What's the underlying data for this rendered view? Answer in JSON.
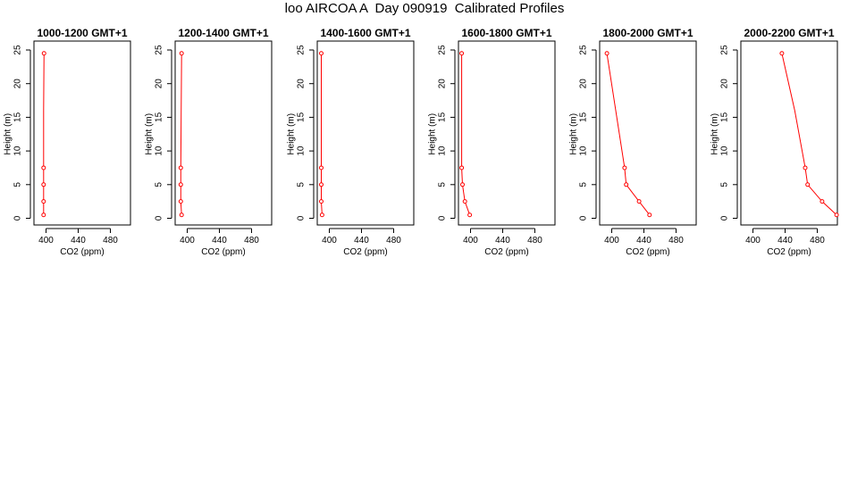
{
  "title": "loo AIRCOA A  Day 090919  Calibrated Profiles",
  "colors": {
    "series": "#ff0000",
    "axis": "#000000"
  },
  "chart_data": [
    {
      "type": "line",
      "title": "1000-1200 GMT+1",
      "xlabel": "CO2 (ppm)",
      "ylabel": "Height (m)",
      "xlim": [
        385,
        505
      ],
      "ylim": [
        0,
        25
      ],
      "xticks": [
        400,
        440,
        480
      ],
      "yticks": [
        0,
        5,
        10,
        15,
        20,
        25
      ],
      "series": [
        {
          "x": [
            397,
            397,
            397,
            397,
            397,
            397.5
          ],
          "y": [
            0.5,
            2.5,
            5,
            7.5,
            16,
            24.5
          ]
        }
      ]
    },
    {
      "type": "line",
      "title": "1200-1400 GMT+1",
      "xlabel": "CO2 (ppm)",
      "ylabel": "Height (m)",
      "xlim": [
        385,
        505
      ],
      "ylim": [
        0,
        25
      ],
      "xticks": [
        400,
        440,
        480
      ],
      "yticks": [
        0,
        5,
        10,
        15,
        20,
        25
      ],
      "series": [
        {
          "x": [
            393,
            392,
            392,
            392,
            392.5,
            393
          ],
          "y": [
            0.5,
            2.5,
            5,
            7.5,
            16,
            24.5
          ]
        }
      ]
    },
    {
      "type": "line",
      "title": "1400-1600 GMT+1",
      "xlabel": "CO2 (ppm)",
      "ylabel": "Height (m)",
      "xlim": [
        385,
        505
      ],
      "ylim": [
        0,
        25
      ],
      "xticks": [
        400,
        440,
        480
      ],
      "yticks": [
        0,
        5,
        10,
        15,
        20,
        25
      ],
      "series": [
        {
          "x": [
            391,
            390,
            390,
            390,
            390,
            390
          ],
          "y": [
            0.5,
            2.5,
            5,
            7.5,
            16,
            24.5
          ]
        }
      ]
    },
    {
      "type": "line",
      "title": "1600-1800 GMT+1",
      "xlabel": "CO2 (ppm)",
      "ylabel": "Height (m)",
      "xlim": [
        385,
        505
      ],
      "ylim": [
        0,
        25
      ],
      "xticks": [
        400,
        440,
        480
      ],
      "yticks": [
        0,
        5,
        10,
        15,
        20,
        25
      ],
      "series": [
        {
          "x": [
            399,
            393,
            390,
            389,
            389,
            389
          ],
          "y": [
            0.5,
            2.5,
            5,
            7.5,
            16,
            24.5
          ]
        }
      ]
    },
    {
      "type": "line",
      "title": "1800-2000 GMT+1",
      "xlabel": "CO2 (ppm)",
      "ylabel": "Height (m)",
      "xlim": [
        385,
        505
      ],
      "ylim": [
        0,
        25
      ],
      "xticks": [
        400,
        440,
        480
      ],
      "yticks": [
        0,
        5,
        10,
        15,
        20,
        25
      ],
      "series": [
        {
          "x": [
            447,
            434,
            418,
            416,
            405,
            394
          ],
          "y": [
            0.5,
            2.5,
            5,
            7.5,
            16,
            24.5
          ]
        }
      ]
    },
    {
      "type": "line",
      "title": "2000-2200 GMT+1",
      "xlabel": "CO2 (ppm)",
      "ylabel": "Height (m)",
      "xlim": [
        385,
        505
      ],
      "ylim": [
        0,
        25
      ],
      "xticks": [
        400,
        440,
        480
      ],
      "yticks": [
        0,
        5,
        10,
        15,
        20,
        25
      ],
      "series": [
        {
          "x": [
            504,
            486,
            468,
            465,
            452,
            436
          ],
          "y": [
            0.5,
            2.5,
            5,
            7.5,
            16,
            24.5
          ]
        }
      ]
    }
  ]
}
